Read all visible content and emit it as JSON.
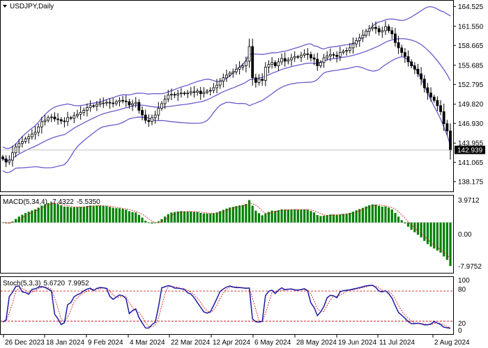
{
  "chart_data": [
    {
      "type": "candlestick",
      "symbol": "USDJPY,Daily",
      "price_axis": {
        "ylim": [
          136.8,
          165.3
        ],
        "ticks": [
          "164.525",
          "161.550",
          "158.665",
          "155.685",
          "152.795",
          "149.820",
          "146.930",
          "143.955",
          "141.065",
          "138.175"
        ],
        "current_price_label": "142.939",
        "current_price": 142.939
      },
      "x_axis_labels": [
        "26 Dec 2023",
        "18 Jan 2024",
        "9 Feb 2024",
        "4 Mar 2024",
        "22 Mar 2024",
        "12 Apr 2024",
        "6 May 2024",
        "28 May 2024",
        "19 Jun 2024",
        "11 Jul 2024",
        "2 Aug 2024"
      ],
      "close_series": [
        141.6,
        141.1,
        141.4,
        142.5,
        143.4,
        143.9,
        144.2,
        144.6,
        144.9,
        145.3,
        145.6,
        146.4,
        147.2,
        147.4,
        147.8,
        147.9,
        147.6,
        147.5,
        147.3,
        147.2,
        147.8,
        147.7,
        148.1,
        148.3,
        148.6,
        148.9,
        149.3,
        149.6,
        149.5,
        149.8,
        150.0,
        150.0,
        150.1,
        150.0,
        149.9,
        150.2,
        150.4,
        150.3,
        150.2,
        149.7,
        149.9,
        150.1,
        148.9,
        148.2,
        147.4,
        147.2,
        147.8,
        148.2,
        149.2,
        149.9,
        150.6,
        151.2,
        151.3,
        151.2,
        151.4,
        151.5,
        151.4,
        151.5,
        151.7,
        151.6,
        151.8,
        151.4,
        151.6,
        151.8,
        151.9,
        152.3,
        152.7,
        153.3,
        153.8,
        154.2,
        154.5,
        154.7,
        155.1,
        155.4,
        155.6,
        156.3,
        158.5,
        153.8,
        153.1,
        153.6,
        153.4,
        155.4,
        155.8,
        156.1,
        155.6,
        156.2,
        156.7,
        156.3,
        156.5,
        156.8,
        157.0,
        156.9,
        157.2,
        157.4,
        157.3,
        156.8,
        156.6,
        155.6,
        156.1,
        156.8,
        157.1,
        157.3,
        157.2,
        157.0,
        157.6,
        157.8,
        157.9,
        158.3,
        158.9,
        159.4,
        159.8,
        160.2,
        160.8,
        161.2,
        161.4,
        161.2,
        160.7,
        160.9,
        161.5,
        160.9,
        160.4,
        159.1,
        158.3,
        157.6,
        157.0,
        156.2,
        155.6,
        155.1,
        154.4,
        153.6,
        152.3,
        151.5,
        150.9,
        150.4,
        149.6,
        148.7,
        146.9,
        145.8,
        142.9
      ],
      "bollinger": {
        "period": 20,
        "deviation": 2
      }
    },
    {
      "type": "histogram",
      "indicator": "MACD(5,34,4)",
      "value_labels": [
        "-7.4322",
        "-5.5350"
      ],
      "ylim": [
        -8.6,
        4.6
      ],
      "ticks": [
        "3.9712",
        "0.00",
        "-7.9752"
      ]
    },
    {
      "type": "line",
      "indicator": "Stoch(5,3,3)",
      "value_labels": [
        "5.6720",
        "7.9952"
      ],
      "ylim": [
        -6,
        108
      ],
      "ticks": [
        "100",
        "80",
        "20",
        "0"
      ],
      "levels": [
        80,
        20
      ],
      "k_series": [
        18.0,
        22.0,
        68.8,
        77.6,
        89.1,
        90.0,
        78.3,
        76.8,
        73.5,
        83.3,
        84.3,
        87.5,
        89.0,
        87.3,
        83.9,
        79.9,
        33.8,
        24.6,
        13.2,
        16.6,
        52.6,
        57.0,
        68.5,
        72.7,
        75.5,
        80.4,
        84.0,
        85.6,
        80.9,
        85.3,
        87.0,
        86.5,
        85.0,
        69.3,
        63.4,
        68.0,
        72.1,
        70.6,
        64.7,
        34.9,
        40.9,
        44.3,
        26.9,
        16.3,
        6.3,
        5.9,
        12.9,
        17.5,
        48.0,
        86.4,
        88.5,
        90.7,
        89.2,
        85.8,
        85.7,
        84.7,
        83.0,
        76.6,
        74.0,
        66.9,
        57.0,
        47.5,
        38.3,
        35.8,
        38.4,
        51.2,
        64.6,
        79.1,
        84.1,
        88.0,
        90.1,
        88.0,
        86.9,
        87.0,
        86.3,
        85.3,
        86.0,
        24.3,
        18.6,
        18.1,
        19.3,
        70.7,
        79.7,
        81.6,
        74.9,
        81.7,
        86.5,
        82.5,
        83.5,
        84.2,
        82.1,
        81.7,
        83.0,
        84.6,
        80.1,
        56.2,
        46.9,
        30.9,
        38.4,
        49.0,
        66.5,
        71.5,
        70.4,
        66.6,
        78.4,
        80.8,
        81.6,
        82.4,
        83.8,
        85.4,
        86.9,
        88.6,
        90.4,
        91.2,
        91.5,
        87.3,
        79.9,
        78.3,
        80.6,
        74.6,
        65.8,
        51.0,
        37.4,
        31.7,
        25.6,
        19.1,
        14.8,
        14.9,
        15.7,
        14.6,
        12.4,
        12.5,
        14.1,
        19.1,
        15.9,
        13.1,
        7.6,
        6.7,
        5.7
      ]
    }
  ]
}
